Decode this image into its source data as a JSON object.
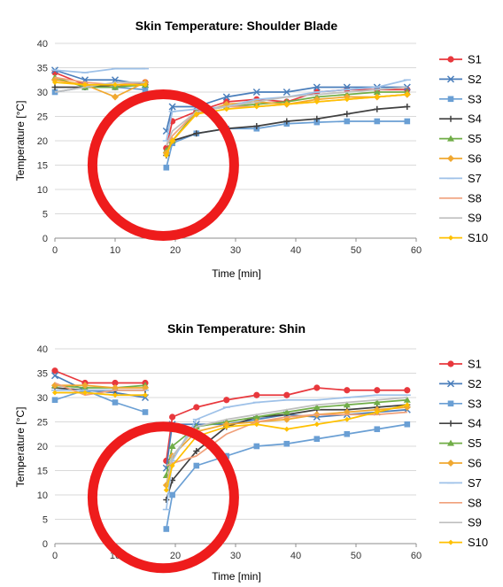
{
  "chart_data": [
    {
      "type": "line",
      "title": "Skin Temperature: Shoulder Blade",
      "xlabel": "Time [min]",
      "ylabel": "Temperature [°C]",
      "xlim": [
        0,
        60
      ],
      "ylim": [
        0,
        40
      ],
      "xticks": [
        0,
        10,
        20,
        30,
        40,
        50,
        60
      ],
      "yticks": [
        0,
        5,
        10,
        15,
        20,
        25,
        30,
        35,
        40
      ],
      "grid": "horizontal",
      "legend": "right",
      "series": [
        {
          "name": "S1",
          "color": "#e8383d",
          "marker": "circle",
          "x": [
            0,
            5,
            10,
            15,
            18.5,
            19.5,
            23.5,
            28.5,
            33.5,
            38.5,
            43.5,
            48.5,
            53.5,
            58.5
          ],
          "y": [
            34,
            31.5,
            31,
            32,
            18.5,
            24,
            26,
            28,
            28.5,
            28,
            30,
            30.5,
            30.5,
            30.5
          ]
        },
        {
          "name": "S2",
          "color": "#4a7ebb",
          "marker": "x",
          "x": [
            0,
            5,
            10,
            15,
            18.5,
            19.5,
            23.5,
            28.5,
            33.5,
            38.5,
            43.5,
            48.5,
            53.5,
            58.5
          ],
          "y": [
            34.5,
            32.5,
            32.5,
            31.5,
            22,
            27,
            27,
            29,
            30,
            30,
            31,
            31,
            31,
            31
          ]
        },
        {
          "name": "S3",
          "color": "#6a9fd4",
          "marker": "square",
          "x": [
            0,
            5,
            10,
            15,
            18.5,
            19.5,
            23.5,
            28.5,
            33.5,
            38.5,
            43.5,
            48.5,
            53.5,
            58.5
          ],
          "y": [
            30,
            31,
            31,
            30.5,
            14.5,
            19.5,
            21.5,
            22.5,
            22.5,
            23.5,
            23.8,
            24,
            24,
            24
          ]
        },
        {
          "name": "S4",
          "color": "#404040",
          "marker": "plus",
          "x": [
            0,
            5,
            10,
            15,
            18.5,
            19.5,
            23.5,
            28.5,
            33.5,
            38.5,
            43.5,
            48.5,
            53.5,
            58.5
          ],
          "y": [
            31,
            31,
            31.5,
            31.5,
            17,
            20,
            21.5,
            22.5,
            23,
            24,
            24.5,
            25.5,
            26.5,
            27
          ]
        },
        {
          "name": "S5",
          "color": "#70ad47",
          "marker": "triangle",
          "x": [
            0,
            5,
            10,
            15,
            18.5,
            19.5,
            23.5,
            28.5,
            33.5,
            38.5,
            43.5,
            48.5,
            53.5,
            58.5
          ],
          "y": [
            33,
            31,
            31,
            31.5,
            18,
            20,
            26,
            27,
            27.5,
            28,
            29,
            29.5,
            30,
            30
          ]
        },
        {
          "name": "S6",
          "color": "#f0a830",
          "marker": "diamond",
          "x": [
            0,
            5,
            10,
            15,
            18.5,
            19.5,
            23.5,
            28.5,
            33.5,
            38.5,
            43.5,
            48.5,
            53.5,
            58.5
          ],
          "y": [
            32.5,
            31.5,
            29,
            32,
            17.5,
            20,
            25.5,
            27.5,
            28,
            27.5,
            28.5,
            29,
            29,
            29.5
          ]
        },
        {
          "name": "S7",
          "color": "#9ec1e8",
          "marker": "dash",
          "x": [
            0,
            5,
            10,
            15,
            18.5,
            19.5,
            23.5,
            28.5,
            33.5,
            38.5,
            43.5,
            48.5,
            53.5,
            58.5
          ],
          "y": [
            34.5,
            34,
            34.8,
            34.8,
            20,
            26,
            26.5,
            27,
            28.5,
            29,
            30,
            30.5,
            31,
            32.5
          ]
        },
        {
          "name": "S8",
          "color": "#f0a07a",
          "marker": "none",
          "x": [
            0,
            5,
            10,
            15,
            18.5,
            19.5,
            23.5,
            28.5,
            33.5,
            38.5,
            43.5,
            48.5,
            53.5,
            58.5
          ],
          "y": [
            33,
            32,
            31.5,
            32,
            19,
            21,
            26,
            27,
            27,
            27.5,
            28,
            28.5,
            29,
            29.5
          ]
        },
        {
          "name": "S9",
          "color": "#bfbfbf",
          "marker": "none",
          "x": [
            0,
            5,
            10,
            15,
            18.5,
            19.5,
            23.5,
            28.5,
            33.5,
            38.5,
            43.5,
            48.5,
            53.5,
            58.5
          ],
          "y": [
            30,
            31,
            32,
            32,
            19,
            22,
            26,
            27,
            28,
            29,
            29.5,
            30,
            30.5,
            31
          ]
        },
        {
          "name": "S10",
          "color": "#ffc000",
          "marker": "diamond-small",
          "x": [
            0,
            5,
            10,
            15,
            18.5,
            19.5,
            23.5,
            28.5,
            33.5,
            38.5,
            43.5,
            48.5,
            53.5,
            58.5
          ],
          "y": [
            32,
            31.5,
            31.5,
            31.5,
            17,
            20,
            25.5,
            26.5,
            27,
            27.5,
            28,
            28.5,
            29,
            29.5
          ]
        }
      ],
      "annotation": {
        "shape": "circle",
        "color": "#ee1c1c",
        "center": [
          18,
          15
        ],
        "note": ""
      }
    },
    {
      "type": "line",
      "title": "Skin Temperature: Shin",
      "xlabel": "Time [min]",
      "ylabel": "Temperature [°C]",
      "xlim": [
        0,
        60
      ],
      "ylim": [
        0,
        40
      ],
      "xticks": [
        0,
        10,
        20,
        30,
        40,
        50,
        60
      ],
      "yticks": [
        0,
        5,
        10,
        15,
        20,
        25,
        30,
        35,
        40
      ],
      "grid": "horizontal",
      "legend": "right",
      "series": [
        {
          "name": "S1",
          "color": "#e8383d",
          "marker": "circle",
          "x": [
            0,
            5,
            10,
            15,
            18.5,
            19.5,
            23.5,
            28.5,
            33.5,
            38.5,
            43.5,
            48.5,
            53.5,
            58.5
          ],
          "y": [
            35.5,
            33,
            33,
            33,
            17,
            26,
            28,
            29.5,
            30.5,
            30.5,
            32,
            31.5,
            31.5,
            31.5
          ]
        },
        {
          "name": "S2",
          "color": "#4a7ebb",
          "marker": "x",
          "x": [
            0,
            5,
            10,
            15,
            18.5,
            19.5,
            23.5,
            28.5,
            33.5,
            38.5,
            43.5,
            48.5,
            53.5,
            58.5
          ],
          "y": [
            34.5,
            31.5,
            31,
            30,
            15.5,
            24.5,
            24.5,
            24.5,
            25.5,
            26.5,
            26,
            26.5,
            27,
            27.5
          ]
        },
        {
          "name": "S3",
          "color": "#6a9fd4",
          "marker": "square",
          "x": [
            0,
            5,
            10,
            15,
            18.5,
            19.5,
            23.5,
            28.5,
            33.5,
            38.5,
            43.5,
            48.5,
            53.5,
            58.5
          ],
          "y": [
            29.5,
            31.5,
            29,
            27,
            3,
            10,
            16,
            18,
            20,
            20.5,
            21.5,
            22.5,
            23.5,
            24.5
          ]
        },
        {
          "name": "S4",
          "color": "#404040",
          "marker": "plus",
          "x": [
            0,
            5,
            10,
            15,
            18.5,
            19.5,
            23.5,
            28.5,
            33.5,
            38.5,
            43.5,
            48.5,
            53.5,
            58.5
          ],
          "y": [
            32,
            31.5,
            31.5,
            31.5,
            9,
            13,
            19,
            24,
            26,
            26.5,
            27.5,
            27.5,
            28,
            28.5
          ]
        },
        {
          "name": "S5",
          "color": "#70ad47",
          "marker": "triangle",
          "x": [
            0,
            5,
            10,
            15,
            18.5,
            19.5,
            23.5,
            28.5,
            33.5,
            38.5,
            43.5,
            48.5,
            53.5,
            58.5
          ],
          "y": [
            32.5,
            32,
            32,
            32.5,
            14,
            20,
            24,
            25,
            26,
            27,
            28,
            28.5,
            29,
            29.5
          ]
        },
        {
          "name": "S6",
          "color": "#f0a830",
          "marker": "diamond",
          "x": [
            0,
            5,
            10,
            15,
            18.5,
            19.5,
            23.5,
            28.5,
            33.5,
            38.5,
            43.5,
            48.5,
            53.5,
            58.5
          ],
          "y": [
            32.5,
            32.5,
            32,
            32,
            12,
            18,
            23,
            24.5,
            25,
            25.5,
            26.5,
            27,
            27.5,
            28
          ]
        },
        {
          "name": "S7",
          "color": "#9ec1e8",
          "marker": "dash",
          "x": [
            0,
            5,
            10,
            15,
            18.5,
            19.5,
            23.5,
            28.5,
            33.5,
            38.5,
            43.5,
            48.5,
            53.5,
            58.5
          ],
          "y": [
            31.5,
            31.5,
            31.5,
            31.5,
            7,
            17,
            25.5,
            28,
            29,
            29.5,
            29.5,
            30,
            30.5,
            30.5
          ]
        },
        {
          "name": "S8",
          "color": "#f0a07a",
          "marker": "none",
          "x": [
            0,
            5,
            10,
            15,
            18.5,
            19.5,
            23.5,
            28.5,
            33.5,
            38.5,
            43.5,
            48.5,
            53.5,
            58.5
          ],
          "y": [
            33,
            30.5,
            31.5,
            31.5,
            16,
            16.5,
            18,
            22.5,
            25,
            26,
            26.5,
            26.5,
            26.5,
            27
          ]
        },
        {
          "name": "S9",
          "color": "#bfbfbf",
          "marker": "none",
          "x": [
            0,
            5,
            10,
            15,
            18.5,
            19.5,
            23.5,
            28.5,
            33.5,
            38.5,
            43.5,
            48.5,
            53.5,
            58.5
          ],
          "y": [
            31,
            31,
            30.5,
            30.5,
            11,
            18,
            24,
            25.5,
            26.5,
            27.5,
            28.5,
            29,
            29.5,
            30
          ]
        },
        {
          "name": "S10",
          "color": "#ffc000",
          "marker": "diamond-small",
          "x": [
            0,
            5,
            10,
            15,
            18.5,
            19.5,
            23.5,
            28.5,
            33.5,
            38.5,
            43.5,
            48.5,
            53.5,
            58.5
          ],
          "y": [
            31,
            31,
            30.5,
            30.5,
            11,
            16,
            22,
            24,
            24.5,
            23.5,
            24.5,
            25.5,
            27,
            28.5
          ]
        }
      ],
      "annotation": {
        "shape": "circle",
        "color": "#ee1c1c",
        "center": [
          18,
          9.5
        ],
        "note": ""
      }
    }
  ]
}
